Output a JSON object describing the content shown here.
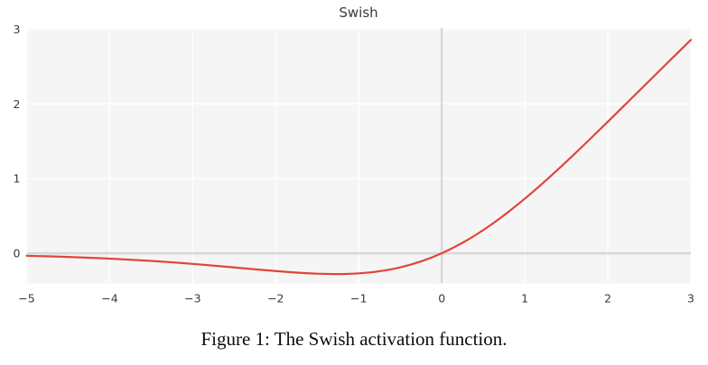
{
  "figure": {
    "title": "Swish",
    "caption": "Figure 1: The Swish activation function."
  },
  "chart_data": {
    "type": "line",
    "title": "Swish",
    "xlabel": "",
    "ylabel": "",
    "xlim": [
      -5,
      3
    ],
    "ylim": [
      -0.404,
      3.018
    ],
    "grid": true,
    "legend": false,
    "xticks": [
      -5,
      -4,
      -3,
      -2,
      -1,
      0,
      1,
      2,
      3
    ],
    "xtick_labels": [
      "−5",
      "−4",
      "−3",
      "−2",
      "−1",
      "0",
      "1",
      "2",
      "3"
    ],
    "yticks": [
      0,
      1,
      2,
      3
    ],
    "ytick_labels": [
      "0",
      "1",
      "2",
      "3"
    ],
    "zero_lines": [
      "x=0",
      "y=0"
    ],
    "series": [
      {
        "name": "swish",
        "x": [
          -5,
          -4.75,
          -4.5,
          -4.25,
          -4,
          -3.75,
          -3.5,
          -3.25,
          -3,
          -2.75,
          -2.5,
          -2.25,
          -2,
          -1.75,
          -1.5,
          -1.25,
          -1,
          -0.75,
          -0.5,
          -0.25,
          0,
          0.25,
          0.5,
          0.75,
          1,
          1.25,
          1.5,
          1.75,
          2,
          2.25,
          2.5,
          2.75,
          3
        ],
        "y": [
          -0.0335,
          -0.0407,
          -0.0494,
          -0.0598,
          -0.0719,
          -0.0862,
          -0.1026,
          -0.1213,
          -0.1423,
          -0.1652,
          -0.1897,
          -0.2145,
          -0.2384,
          -0.2591,
          -0.2736,
          -0.2784,
          -0.2689,
          -0.2406,
          -0.1888,
          -0.1095,
          0.0,
          0.1405,
          0.3112,
          0.5094,
          0.7311,
          0.9716,
          1.2264,
          1.4909,
          1.7616,
          2.0355,
          2.3104,
          2.5848,
          2.8577
        ]
      }
    ],
    "colors": {
      "line": "#e2443a",
      "plot_bg": "#f5f5f5",
      "grid": "#ffffff",
      "zero_line": "#d8d8d8",
      "tick_text": "#3a3a3a",
      "title_text": "#3a3a3a",
      "caption_text": "#0d0d0d"
    }
  }
}
